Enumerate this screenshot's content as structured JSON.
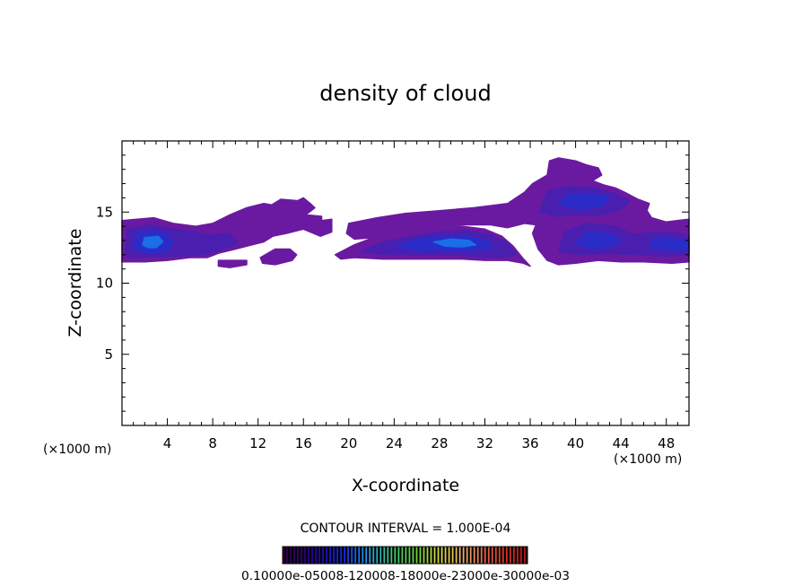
{
  "chart_data": {
    "type": "heatmap",
    "title": "density of cloud",
    "xlabel": "X-coordinate",
    "ylabel": "Z-coordinate",
    "x_unit_left": "(×1000 m)",
    "x_unit_right": "(×1000 m)",
    "xlim": [
      0,
      50
    ],
    "ylim": [
      0,
      20
    ],
    "x_ticks": [
      4,
      8,
      12,
      16,
      20,
      24,
      28,
      32,
      36,
      40,
      44,
      48
    ],
    "y_ticks": [
      5,
      10,
      15
    ],
    "contour_interval_text": "CONTOUR INTERVAL = 1.000E-04",
    "colorbar_min": 0.0001,
    "colorbar_max": 0.001,
    "colorbar_label_text": "0.10000e-05008-120008-18000e-23000e-30000e-03",
    "colors": {
      "outer": "#6a1aa0",
      "mid": "#4a1fb0",
      "inner": "#2b2bc8",
      "core": "#1a6ee6"
    },
    "cloud_regions": [
      {
        "level": 1,
        "polygon": [
          [
            0,
            14.4
          ],
          [
            2.8,
            14.6
          ],
          [
            4.5,
            14.2
          ],
          [
            6.5,
            14.0
          ],
          [
            8,
            14.2
          ],
          [
            9.5,
            14.8
          ],
          [
            11,
            15.3
          ],
          [
            12.5,
            15.6
          ],
          [
            13.2,
            15.5
          ],
          [
            14,
            15.9
          ],
          [
            15.5,
            15.8
          ],
          [
            16,
            16
          ],
          [
            16.6,
            15.6
          ],
          [
            17,
            15.3
          ],
          [
            16.2,
            14.8
          ],
          [
            17.6,
            14.7
          ],
          [
            17.6,
            14.4
          ],
          [
            18.5,
            14.5
          ],
          [
            18.5,
            13.6
          ],
          [
            17.5,
            13.3
          ],
          [
            16,
            13.8
          ],
          [
            14.5,
            13.5
          ],
          [
            13.3,
            13.3
          ],
          [
            12.5,
            12.9
          ],
          [
            11.5,
            12.7
          ],
          [
            10,
            12.4
          ],
          [
            8.5,
            12.1
          ],
          [
            7.5,
            11.8
          ],
          [
            6,
            11.8
          ],
          [
            4,
            11.6
          ],
          [
            2,
            11.5
          ],
          [
            0,
            11.5
          ]
        ]
      },
      {
        "level": 1,
        "polygon": [
          [
            8.5,
            11.6
          ],
          [
            11,
            11.6
          ],
          [
            11,
            11.3
          ],
          [
            9.5,
            11.1
          ],
          [
            8.5,
            11.2
          ]
        ]
      },
      {
        "level": 1,
        "polygon": [
          [
            12.2,
            11.8
          ],
          [
            13.5,
            12.4
          ],
          [
            14.8,
            12.4
          ],
          [
            15.4,
            12
          ],
          [
            15,
            11.6
          ],
          [
            13.5,
            11.3
          ],
          [
            12.4,
            11.4
          ]
        ]
      },
      {
        "level": 1,
        "polygon": [
          [
            18.8,
            12.0
          ],
          [
            20.5,
            12.7
          ],
          [
            22.5,
            13.3
          ],
          [
            25,
            13.7
          ],
          [
            27.5,
            13.9
          ],
          [
            30,
            14.0
          ],
          [
            32,
            13.8
          ],
          [
            33.5,
            13.3
          ],
          [
            34.5,
            12.6
          ],
          [
            35.3,
            11.8
          ],
          [
            36,
            11.2
          ],
          [
            35.4,
            11.4
          ],
          [
            34,
            11.6
          ],
          [
            32,
            11.6
          ],
          [
            30,
            11.7
          ],
          [
            28,
            11.7
          ],
          [
            26,
            11.7
          ],
          [
            23,
            11.7
          ],
          [
            20.5,
            11.8
          ],
          [
            19.3,
            11.7
          ]
        ]
      },
      {
        "level": 1,
        "polygon": [
          [
            20,
            14.2
          ],
          [
            22.5,
            14.6
          ],
          [
            25,
            14.9
          ],
          [
            28,
            15.1
          ],
          [
            31,
            15.3
          ],
          [
            34,
            15.6
          ],
          [
            35.5,
            16.4
          ],
          [
            36.2,
            17.0
          ],
          [
            37.5,
            17.6
          ],
          [
            37.7,
            18.6
          ],
          [
            38.5,
            18.8
          ],
          [
            40,
            18.6
          ],
          [
            41,
            18.3
          ],
          [
            42,
            18.1
          ],
          [
            42.3,
            17.6
          ],
          [
            41.5,
            17.2
          ],
          [
            42.5,
            16.9
          ],
          [
            43.5,
            16.7
          ],
          [
            44.3,
            16.4
          ],
          [
            45.5,
            15.9
          ],
          [
            46.5,
            15.6
          ],
          [
            46.3,
            15.1
          ],
          [
            46.7,
            14.6
          ],
          [
            48,
            14.3
          ],
          [
            50,
            14.5
          ],
          [
            50,
            11.5
          ],
          [
            48.5,
            11.4
          ],
          [
            46,
            11.5
          ],
          [
            44,
            11.5
          ],
          [
            42,
            11.6
          ],
          [
            40,
            11.4
          ],
          [
            38.5,
            11.3
          ],
          [
            37.5,
            11.6
          ],
          [
            36.7,
            12.4
          ],
          [
            36.2,
            13.5
          ],
          [
            36.5,
            14.1
          ],
          [
            35.5,
            14.2
          ],
          [
            34,
            13.9
          ],
          [
            32.5,
            14.1
          ],
          [
            30,
            14.1
          ],
          [
            27,
            13.9
          ],
          [
            24.5,
            13.7
          ],
          [
            22.3,
            13.2
          ],
          [
            20.5,
            13.1
          ],
          [
            19.8,
            13.5
          ]
        ]
      }
    ],
    "contours": [
      {
        "level": 2,
        "polygon": [
          [
            0.3,
            12.0
          ],
          [
            0.5,
            13.8
          ],
          [
            2.5,
            14.1
          ],
          [
            4.5,
            13.8
          ],
          [
            6.5,
            13.6
          ],
          [
            7.8,
            13.4
          ],
          [
            9.5,
            13.5
          ],
          [
            10.2,
            12.8
          ],
          [
            9,
            12.4
          ],
          [
            7,
            12.0
          ],
          [
            5,
            11.9
          ],
          [
            3,
            11.9
          ],
          [
            1,
            11.8
          ]
        ]
      },
      {
        "level": 3,
        "polygon": [
          [
            1.0,
            12.4
          ],
          [
            1.2,
            13.5
          ],
          [
            2.8,
            13.7
          ],
          [
            4.0,
            13.4
          ],
          [
            4.6,
            12.8
          ],
          [
            3.8,
            12.2
          ],
          [
            2.2,
            12.1
          ]
        ]
      },
      {
        "level": 4,
        "polygon": [
          [
            1.8,
            12.7
          ],
          [
            2.0,
            13.2
          ],
          [
            3.2,
            13.3
          ],
          [
            3.6,
            12.9
          ],
          [
            3.0,
            12.5
          ],
          [
            2.3,
            12.5
          ]
        ]
      },
      {
        "level": 2,
        "polygon": [
          [
            21,
            12.2
          ],
          [
            23,
            12.9
          ],
          [
            25.5,
            13.3
          ],
          [
            28,
            13.6
          ],
          [
            30.5,
            13.7
          ],
          [
            32.5,
            13.4
          ],
          [
            34,
            12.8
          ],
          [
            34.8,
            12.0
          ],
          [
            33.5,
            11.8
          ],
          [
            31,
            11.9
          ],
          [
            28.5,
            12.0
          ],
          [
            26,
            12.0
          ],
          [
            23.5,
            12.0
          ]
        ]
      },
      {
        "level": 3,
        "polygon": [
          [
            24,
            12.6
          ],
          [
            26,
            13.1
          ],
          [
            28.3,
            13.3
          ],
          [
            30.5,
            13.3
          ],
          [
            32.2,
            13.0
          ],
          [
            32.8,
            12.5
          ],
          [
            31,
            12.3
          ],
          [
            28.5,
            12.3
          ],
          [
            26,
            12.3
          ]
        ]
      },
      {
        "level": 4,
        "polygon": [
          [
            27.5,
            12.9
          ],
          [
            29,
            13.1
          ],
          [
            30.6,
            13.0
          ],
          [
            31.2,
            12.7
          ],
          [
            30,
            12.55
          ],
          [
            28.5,
            12.6
          ]
        ]
      },
      {
        "level": 2,
        "polygon": [
          [
            36.8,
            15.0
          ],
          [
            37.5,
            16.5
          ],
          [
            39.5,
            16.8
          ],
          [
            41.5,
            16.7
          ],
          [
            43.5,
            16.3
          ],
          [
            44.8,
            15.8
          ],
          [
            44,
            15.2
          ],
          [
            42,
            14.8
          ],
          [
            40,
            14.8
          ],
          [
            38.2,
            14.7
          ]
        ]
      },
      {
        "level": 3,
        "polygon": [
          [
            38.5,
            15.6
          ],
          [
            39.5,
            16.3
          ],
          [
            41.5,
            16.3
          ],
          [
            43,
            16.0
          ],
          [
            42.3,
            15.4
          ],
          [
            40.2,
            15.2
          ]
        ]
      },
      {
        "level": 2,
        "polygon": [
          [
            38.5,
            12.2
          ],
          [
            39,
            13.6
          ],
          [
            41,
            14.2
          ],
          [
            43.5,
            14.0
          ],
          [
            45,
            13.4
          ],
          [
            47,
            13.6
          ],
          [
            49,
            13.5
          ],
          [
            50,
            13.3
          ],
          [
            50,
            12.0
          ],
          [
            48,
            11.9
          ],
          [
            45.5,
            12.0
          ],
          [
            43,
            12.1
          ],
          [
            40.5,
            12.0
          ]
        ]
      },
      {
        "level": 3,
        "polygon": [
          [
            40,
            12.8
          ],
          [
            41,
            13.6
          ],
          [
            43,
            13.5
          ],
          [
            44,
            13.0
          ],
          [
            43,
            12.5
          ],
          [
            41.2,
            12.4
          ]
        ]
      },
      {
        "level": 3,
        "polygon": [
          [
            46.5,
            12.5
          ],
          [
            47,
            13.2
          ],
          [
            49,
            13.1
          ],
          [
            50,
            12.9
          ],
          [
            50,
            12.3
          ],
          [
            48.5,
            12.3
          ]
        ]
      }
    ]
  }
}
